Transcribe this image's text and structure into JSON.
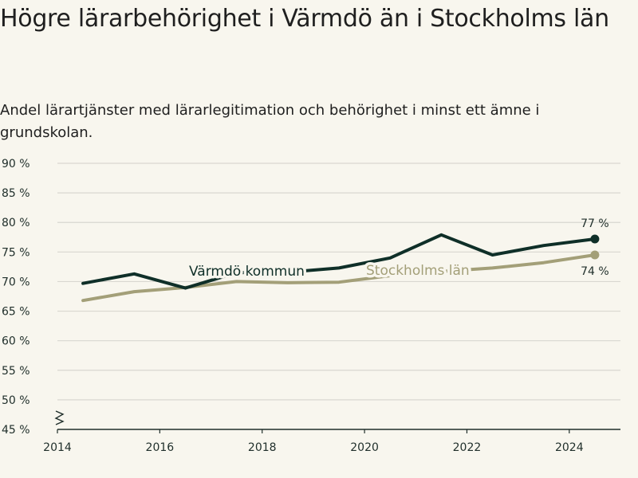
{
  "title": "Högre lärarbehörighet i Värmdö än i Stockholms län",
  "subtitle": "Andel lärartjänster med lärarlegitimation och behörighet i minst ett ämne i grundskolan.",
  "colors": {
    "background": "#f8f6ee",
    "varmdo": "#0f2f28",
    "stockholm": "#a39f78",
    "grid": "#d9d7d0",
    "axis": "#1f2e2a"
  },
  "chart_data": {
    "type": "line",
    "x_ticks": [
      "2014",
      "2016",
      "2018",
      "2020",
      "2022",
      "2024"
    ],
    "y_ticks": [
      "45 %",
      "50 %",
      "55 %",
      "60 %",
      "65 %",
      "70 %",
      "75 %",
      "80 %",
      "85 %",
      "90 %"
    ],
    "xlim": [
      2014,
      2025
    ],
    "ylim": [
      45,
      90
    ],
    "y_axis_break": true,
    "grid": "horizontal",
    "series": [
      {
        "name": "Värmdö kommun",
        "color": "#0f2f28",
        "x": [
          2014.5,
          2015.5,
          2016.5,
          2017.5,
          2018.5,
          2019.5,
          2020.5,
          2021.5,
          2022.5,
          2023.5,
          2024.5
        ],
        "values": [
          69.7,
          71.3,
          68.9,
          71.5,
          71.6,
          72.3,
          74.0,
          77.9,
          74.5,
          76.1,
          77.2
        ],
        "end_label": "77 %"
      },
      {
        "name": "Stockholms län",
        "color": "#a39f78",
        "x": [
          2014.5,
          2015.5,
          2016.5,
          2017.5,
          2018.5,
          2019.5,
          2020.5,
          2021.5,
          2022.5,
          2023.5,
          2024.5
        ],
        "values": [
          66.8,
          68.3,
          69.0,
          70.0,
          69.8,
          69.9,
          71.0,
          71.7,
          72.3,
          73.2,
          74.5
        ],
        "end_label": "74 %"
      }
    ]
  }
}
